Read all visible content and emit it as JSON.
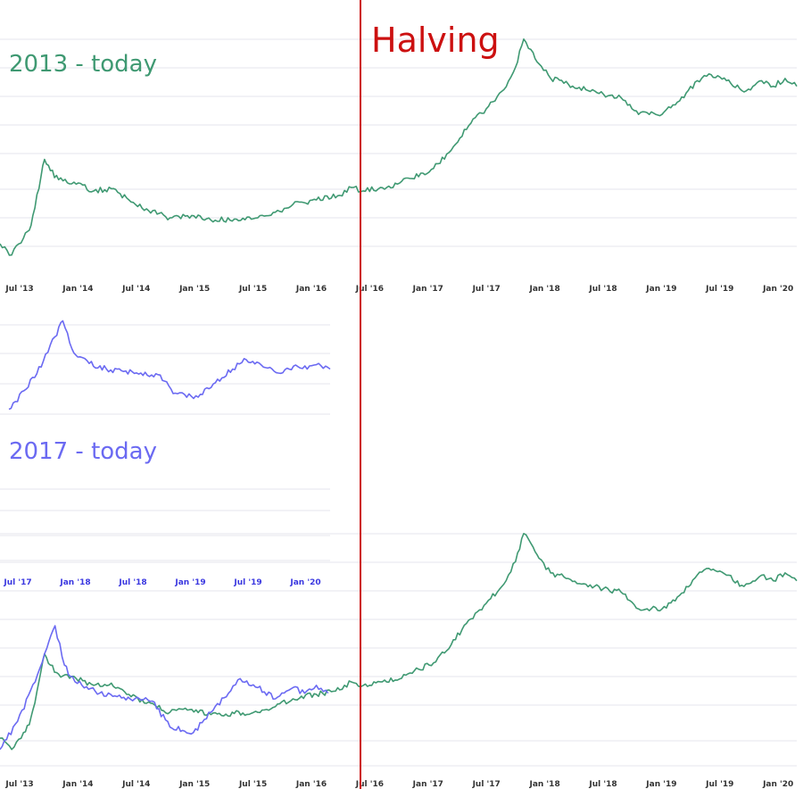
{
  "colors": {
    "green": "#3f9972",
    "blue": "#6b6af2",
    "red": "#cc1010",
    "grid": "#e6e6ee",
    "tick_text": "#333333",
    "tick_text_blue": "#3a37e0"
  },
  "labels": {
    "title_2013": "2013 - today",
    "title_2017": "2017 - today",
    "halving": "Halving"
  },
  "chart_data": [
    {
      "type": "line",
      "id": "top-2013",
      "title": "2013 - today",
      "xlabel": "",
      "ylabel": "",
      "x_ticks": [
        "Jul '13",
        "Jan '14",
        "Jul '14",
        "Jan '15",
        "Jul '15",
        "Jan '16",
        "Jul '16",
        "Jan '17",
        "Jul '17",
        "Jan '18",
        "Jul '18",
        "Jan '19",
        "Jul '19",
        "Jan '20"
      ],
      "grid": true,
      "series": [
        {
          "color": "green",
          "x": [
            2013.5,
            2013.6,
            2013.7,
            2013.75,
            2013.78,
            2013.85,
            2013.88,
            2013.93,
            2014.0,
            2014.15,
            2014.3,
            2014.45,
            2014.6,
            2014.75,
            2014.95,
            2015.1,
            2015.3,
            2015.5,
            2015.7,
            2015.85,
            2016.0,
            2016.2,
            2016.4,
            2016.5,
            2016.6,
            2016.8,
            2017.0,
            2017.2,
            2017.35,
            2017.5,
            2017.65,
            2017.8,
            2017.9,
            2017.97,
            2018.05,
            2018.1,
            2018.2,
            2018.35,
            2018.5,
            2018.65,
            2018.8,
            2018.95,
            2019.15,
            2019.3,
            2019.45,
            2019.55,
            2019.7,
            2019.85,
            2020.0,
            2020.1,
            2020.2,
            2020.3
          ],
          "values": [
            0.15,
            0.05,
            0.2,
            0.27,
            0.4,
            0.75,
            0.9,
            0.8,
            0.72,
            0.68,
            0.62,
            0.64,
            0.54,
            0.46,
            0.38,
            0.4,
            0.36,
            0.37,
            0.38,
            0.43,
            0.5,
            0.54,
            0.58,
            0.65,
            0.62,
            0.65,
            0.73,
            0.82,
            0.98,
            1.2,
            1.35,
            1.52,
            1.72,
            1.97,
            1.85,
            1.75,
            1.62,
            1.57,
            1.52,
            1.48,
            1.45,
            1.3,
            1.3,
            1.42,
            1.6,
            1.66,
            1.6,
            1.5,
            1.6,
            1.55,
            1.62,
            1.55
          ]
        }
      ]
    },
    {
      "type": "line",
      "id": "mid-2017",
      "title": "2017 - today",
      "xlabel": "",
      "ylabel": "",
      "x_ticks": [
        "Jul '17",
        "Jan '18",
        "Jul '18",
        "Jan '19",
        "Jul '19",
        "Jan '20"
      ],
      "grid": true,
      "series": [
        {
          "color": "blue",
          "x": [
            2017.5,
            2017.65,
            2017.8,
            2017.9,
            2017.97,
            2018.05,
            2018.1,
            2018.2,
            2018.35,
            2018.5,
            2018.65,
            2018.8,
            2018.95,
            2019.15,
            2019.3,
            2019.45,
            2019.55,
            2019.7,
            2019.85,
            2020.0,
            2020.1,
            2020.2,
            2020.3
          ],
          "values": [
            0.05,
            0.3,
            0.65,
            0.95,
            1.15,
            0.8,
            0.7,
            0.62,
            0.55,
            0.52,
            0.5,
            0.48,
            0.25,
            0.2,
            0.38,
            0.55,
            0.68,
            0.6,
            0.5,
            0.6,
            0.55,
            0.62,
            0.55
          ]
        }
      ]
    },
    {
      "type": "line",
      "id": "bottom-overlay",
      "title": "",
      "xlabel": "",
      "ylabel": "",
      "x_ticks": [
        "Jul '13",
        "Jan '14",
        "Jul '14",
        "Jan '15",
        "Jul '15",
        "Jan '16",
        "Jul '16",
        "Jan '17",
        "Jul '17",
        "Jan '18",
        "Jul '18",
        "Jan '19",
        "Jul '19",
        "Jan '20"
      ],
      "grid": true,
      "series": [
        {
          "color": "green",
          "x": [
            2013.5,
            2013.6,
            2013.7,
            2013.75,
            2013.78,
            2013.85,
            2013.88,
            2013.93,
            2014.0,
            2014.15,
            2014.3,
            2014.45,
            2014.6,
            2014.75,
            2014.95,
            2015.1,
            2015.3,
            2015.5,
            2015.7,
            2015.85,
            2016.0,
            2016.2,
            2016.4,
            2016.5,
            2016.6,
            2016.8,
            2017.0,
            2017.2,
            2017.35,
            2017.5,
            2017.65,
            2017.8,
            2017.9,
            2017.97,
            2018.05,
            2018.1,
            2018.2,
            2018.35,
            2018.5,
            2018.65,
            2018.8,
            2018.95,
            2019.15,
            2019.3,
            2019.45,
            2019.55,
            2019.7,
            2019.85,
            2020.0,
            2020.1,
            2020.2,
            2020.3
          ],
          "values": [
            0.15,
            0.05,
            0.2,
            0.27,
            0.4,
            0.75,
            0.9,
            0.8,
            0.72,
            0.68,
            0.62,
            0.64,
            0.54,
            0.46,
            0.38,
            0.4,
            0.36,
            0.37,
            0.38,
            0.43,
            0.5,
            0.54,
            0.58,
            0.65,
            0.62,
            0.65,
            0.73,
            0.82,
            0.98,
            1.2,
            1.35,
            1.52,
            1.72,
            1.97,
            1.85,
            1.75,
            1.62,
            1.57,
            1.52,
            1.48,
            1.45,
            1.3,
            1.3,
            1.42,
            1.6,
            1.66,
            1.6,
            1.5,
            1.6,
            1.55,
            1.62,
            1.55
          ]
        },
        {
          "color": "blue",
          "x": [
            2013.5,
            2013.65,
            2013.8,
            2013.9,
            2013.97,
            2014.05,
            2014.1,
            2014.2,
            2014.35,
            2014.5,
            2014.65,
            2014.8,
            2014.95,
            2015.15,
            2015.3,
            2015.45,
            2015.55,
            2015.7,
            2015.85,
            2016.0,
            2016.1,
            2016.2,
            2016.3
          ],
          "values": [
            0.05,
            0.3,
            0.65,
            0.95,
            1.15,
            0.8,
            0.7,
            0.62,
            0.55,
            0.52,
            0.5,
            0.48,
            0.25,
            0.2,
            0.38,
            0.55,
            0.68,
            0.6,
            0.5,
            0.6,
            0.55,
            0.62,
            0.55
          ]
        }
      ]
    }
  ]
}
